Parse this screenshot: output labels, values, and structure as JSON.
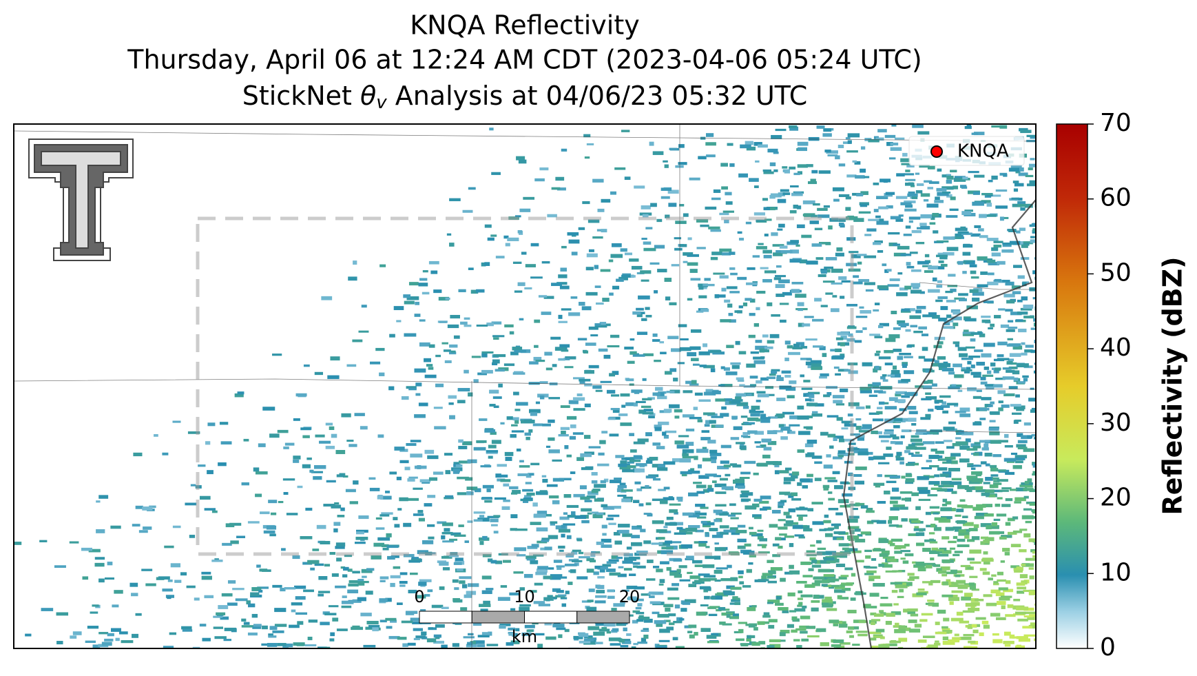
{
  "header": {
    "title": "KNQA Reflectivity",
    "subtitle": "Thursday, April 06 at 12:24 AM CDT (2023-04-06 05:24 UTC)",
    "analysis": {
      "prefix": "StickNet ",
      "symbol": "θ",
      "subscript": "v",
      "suffix": " Analysis at 04/06/23 05:32 UTC"
    }
  },
  "colorbar": {
    "label": "Reflectivity (dBZ)",
    "lim": [
      0,
      70
    ],
    "ticks": [
      0,
      10,
      20,
      30,
      40,
      50,
      60,
      70
    ]
  },
  "legend": {
    "label": "KNQA",
    "color": "#ff0000"
  },
  "scale_bar": {
    "ticks": [
      0,
      10,
      20
    ],
    "unit": "km"
  }
}
